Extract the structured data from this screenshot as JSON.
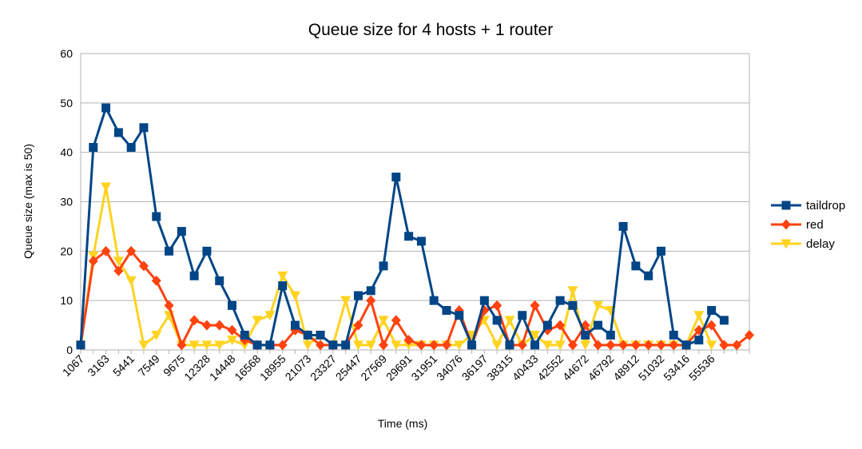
{
  "chart_data": {
    "type": "line",
    "title": "Queue size for 4 hosts + 1 router",
    "xlabel": "Time (ms)",
    "ylabel": "Queue size (max is 50)",
    "ylim": [
      0,
      60
    ],
    "yticks": [
      0,
      10,
      20,
      30,
      40,
      50,
      60
    ],
    "grid": true,
    "legend_position": "right",
    "x_tick_labels": [
      "1067",
      "3163",
      "5441",
      "7549",
      "9675",
      "12328",
      "14448",
      "16568",
      "18955",
      "21073",
      "23327",
      "25447",
      "27569",
      "29691",
      "31951",
      "34076",
      "36197",
      "38315",
      "40433",
      "42552",
      "44672",
      "46792",
      "48912",
      "51032",
      "53416",
      "55536"
    ],
    "series": [
      {
        "name": "taildrop",
        "color": "#004586",
        "marker": "square",
        "values": [
          1,
          41,
          49,
          44,
          41,
          45,
          27,
          20,
          24,
          15,
          20,
          14,
          9,
          3,
          1,
          1,
          13,
          5,
          3,
          3,
          1,
          1,
          11,
          12,
          17,
          35,
          23,
          22,
          10,
          8,
          7,
          1,
          10,
          6,
          1,
          7,
          1,
          5,
          10,
          9,
          3,
          5,
          3,
          25,
          17,
          15,
          20,
          3,
          1,
          2,
          8,
          6,
          null,
          null
        ]
      },
      {
        "name": "red",
        "color": "#ff420e",
        "marker": "diamond",
        "values": [
          1,
          18,
          20,
          16,
          20,
          17,
          14,
          9,
          1,
          6,
          5,
          5,
          4,
          2,
          1,
          1,
          1,
          4,
          3,
          1,
          1,
          1,
          5,
          10,
          1,
          6,
          2,
          1,
          1,
          1,
          8,
          1,
          8,
          9,
          1,
          1,
          9,
          4,
          5,
          1,
          5,
          1,
          1,
          1,
          1,
          1,
          1,
          1,
          1,
          4,
          5,
          1,
          1,
          3
        ]
      },
      {
        "name": "delay",
        "color": "#ffd320",
        "marker": "triangle-down",
        "values": [
          1,
          19,
          33,
          18,
          14,
          1,
          3,
          7,
          1,
          1,
          1,
          1,
          2,
          1,
          6,
          7,
          15,
          11,
          1,
          3,
          1,
          10,
          1,
          1,
          6,
          1,
          1,
          1,
          1,
          1,
          1,
          3,
          6,
          1,
          6,
          1,
          3,
          1,
          1,
          12,
          1,
          9,
          8,
          1,
          1,
          1,
          1,
          1,
          1,
          7,
          1,
          null,
          null,
          null
        ]
      }
    ]
  }
}
